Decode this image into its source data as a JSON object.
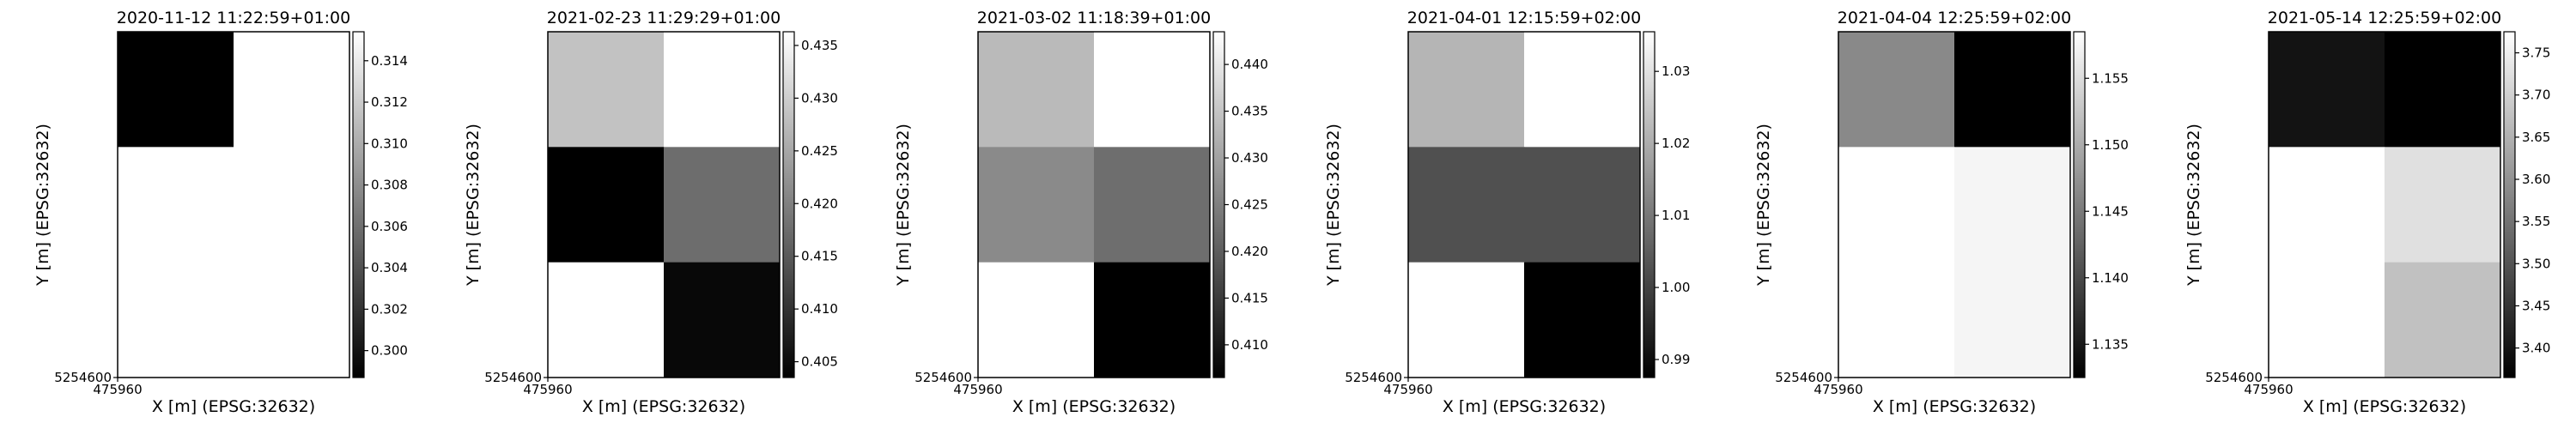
{
  "figure": {
    "background": "#ffffff",
    "colormap": "gray",
    "panels": [
      {
        "title": "2020-11-12 11:22:59+01:00",
        "xlabel": "X [m] (EPSG:32632)",
        "ylabel": "Y [m] (EPSG:32632)",
        "x_tick_label": "475960",
        "y_tick_label": "5254600",
        "colorbar": {
          "vmin": 0.2987,
          "vmax": 0.3154,
          "ticks": [
            "0.300",
            "0.302",
            "0.304",
            "0.306",
            "0.308",
            "0.310",
            "0.312",
            "0.314"
          ]
        },
        "grid": [
          [
            0.2987,
            0.3154
          ],
          [
            0.3154,
            0.3154
          ],
          [
            0.3154,
            0.3154
          ]
        ]
      },
      {
        "title": "2021-02-23 11:29:29+01:00",
        "xlabel": "X [m] (EPSG:32632)",
        "ylabel": "Y [m] (EPSG:32632)",
        "x_tick_label": "475960",
        "y_tick_label": "5254600",
        "colorbar": {
          "vmin": 0.4035,
          "vmax": 0.4363,
          "ticks": [
            "0.405",
            "0.410",
            "0.415",
            "0.420",
            "0.425",
            "0.430",
            "0.435"
          ]
        },
        "grid": [
          [
            0.4285,
            0.4363
          ],
          [
            0.4035,
            0.4175
          ],
          [
            0.4363,
            0.4045
          ]
        ]
      },
      {
        "title": "2021-03-02 11:18:39+01:00",
        "xlabel": "X [m] (EPSG:32632)",
        "ylabel": "Y [m] (EPSG:32632)",
        "x_tick_label": "475960",
        "y_tick_label": "5254600",
        "colorbar": {
          "vmin": 0.4065,
          "vmax": 0.4435,
          "ticks": [
            "0.410",
            "0.415",
            "0.420",
            "0.425",
            "0.430",
            "0.435",
            "0.440"
          ]
        },
        "grid": [
          [
            0.4335,
            0.4435
          ],
          [
            0.4265,
            0.4225
          ],
          [
            0.4435,
            0.4065
          ]
        ]
      },
      {
        "title": "2021-04-01 12:15:59+02:00",
        "xlabel": "X [m] (EPSG:32632)",
        "ylabel": "Y [m] (EPSG:32632)",
        "x_tick_label": "475960",
        "y_tick_label": "5254600",
        "colorbar": {
          "vmin": 0.9875,
          "vmax": 1.0355,
          "ticks": [
            "0.99",
            "1.00",
            "1.01",
            "1.02",
            "1.03"
          ]
        },
        "grid": [
          [
            1.0215,
            1.0355
          ],
          [
            1.0025,
            1.0025
          ],
          [
            1.0355,
            0.9875
          ]
        ]
      },
      {
        "title": "2021-04-04 12:25:59+02:00",
        "xlabel": "X [m] (EPSG:32632)",
        "ylabel": "Y [m] (EPSG:32632)",
        "x_tick_label": "475960",
        "y_tick_label": "5254600",
        "colorbar": {
          "vmin": 1.1325,
          "vmax": 1.1585,
          "ticks": [
            "1.135",
            "1.140",
            "1.145",
            "1.150",
            "1.155"
          ]
        },
        "grid": [
          [
            1.1465,
            1.1325
          ],
          [
            1.1585,
            1.1575
          ],
          [
            1.1585,
            1.1575
          ]
        ]
      },
      {
        "title": "2021-05-14 12:25:59+02:00",
        "xlabel": "X [m] (EPSG:32632)",
        "ylabel": "Y [m] (EPSG:32632)",
        "x_tick_label": "475960",
        "y_tick_label": "5254600",
        "colorbar": {
          "vmin": 3.365,
          "vmax": 3.775,
          "ticks": [
            "3.40",
            "3.45",
            "3.50",
            "3.55",
            "3.60",
            "3.65",
            "3.70",
            "3.75"
          ]
        },
        "grid": [
          [
            3.395,
            3.365
          ],
          [
            3.775,
            3.725
          ],
          [
            3.775,
            3.675
          ]
        ]
      }
    ]
  },
  "chart_data": [
    {
      "type": "heatmap",
      "title": "2020-11-12 11:22:59+01:00",
      "xlabel": "X [m] (EPSG:32632)",
      "ylabel": "Y [m] (EPSG:32632)",
      "x_ticks": [
        "475960"
      ],
      "y_ticks": [
        "5254600"
      ],
      "colorbar_range": [
        0.2987,
        0.3154
      ],
      "colorbar_ticks": [
        0.3,
        0.302,
        0.304,
        0.306,
        0.308,
        0.31,
        0.312,
        0.314
      ],
      "values": [
        [
          0.2987,
          0.3154
        ],
        [
          0.3154,
          0.3154
        ],
        [
          0.3154,
          0.3154
        ]
      ],
      "grid": false
    },
    {
      "type": "heatmap",
      "title": "2021-02-23 11:29:29+01:00",
      "xlabel": "X [m] (EPSG:32632)",
      "ylabel": "Y [m] (EPSG:32632)",
      "x_ticks": [
        "475960"
      ],
      "y_ticks": [
        "5254600"
      ],
      "colorbar_range": [
        0.4035,
        0.4363
      ],
      "colorbar_ticks": [
        0.405,
        0.41,
        0.415,
        0.42,
        0.425,
        0.43,
        0.435
      ],
      "values": [
        [
          0.4285,
          0.4363
        ],
        [
          0.4035,
          0.4175
        ],
        [
          0.4363,
          0.4045
        ]
      ],
      "grid": false
    },
    {
      "type": "heatmap",
      "title": "2021-03-02 11:18:39+01:00",
      "xlabel": "X [m] (EPSG:32632)",
      "ylabel": "Y [m] (EPSG:32632)",
      "x_ticks": [
        "475960"
      ],
      "y_ticks": [
        "5254600"
      ],
      "colorbar_range": [
        0.4065,
        0.4435
      ],
      "colorbar_ticks": [
        0.41,
        0.415,
        0.42,
        0.425,
        0.43,
        0.435,
        0.44
      ],
      "values": [
        [
          0.4335,
          0.4435
        ],
        [
          0.4265,
          0.4225
        ],
        [
          0.4435,
          0.4065
        ]
      ],
      "grid": false
    },
    {
      "type": "heatmap",
      "title": "2021-04-01 12:15:59+02:00",
      "xlabel": "X [m] (EPSG:32632)",
      "ylabel": "Y [m] (EPSG:32632)",
      "x_ticks": [
        "475960"
      ],
      "y_ticks": [
        "5254600"
      ],
      "colorbar_range": [
        0.9875,
        1.0355
      ],
      "colorbar_ticks": [
        0.99,
        1.0,
        1.01,
        1.02,
        1.03
      ],
      "values": [
        [
          1.0215,
          1.0355
        ],
        [
          1.0025,
          1.0025
        ],
        [
          1.0355,
          0.9875
        ]
      ],
      "grid": false
    },
    {
      "type": "heatmap",
      "title": "2021-04-04 12:25:59+02:00",
      "xlabel": "X [m] (EPSG:32632)",
      "ylabel": "Y [m] (EPSG:32632)",
      "x_ticks": [
        "475960"
      ],
      "y_ticks": [
        "5254600"
      ],
      "colorbar_range": [
        1.1325,
        1.1585
      ],
      "colorbar_ticks": [
        1.135,
        1.14,
        1.145,
        1.15,
        1.155
      ],
      "values": [
        [
          1.1465,
          1.1325
        ],
        [
          1.1585,
          1.1575
        ],
        [
          1.1585,
          1.1575
        ]
      ],
      "grid": false
    },
    {
      "type": "heatmap",
      "title": "2021-05-14 12:25:59+02:00",
      "xlabel": "X [m] (EPSG:32632)",
      "ylabel": "Y [m] (EPSG:32632)",
      "x_ticks": [
        "475960"
      ],
      "y_ticks": [
        "5254600"
      ],
      "colorbar_range": [
        3.365,
        3.775
      ],
      "colorbar_ticks": [
        3.4,
        3.45,
        3.5,
        3.55,
        3.6,
        3.65,
        3.7,
        3.75
      ],
      "values": [
        [
          3.395,
          3.365
        ],
        [
          3.775,
          3.725
        ],
        [
          3.775,
          3.675
        ]
      ],
      "grid": false
    }
  ]
}
